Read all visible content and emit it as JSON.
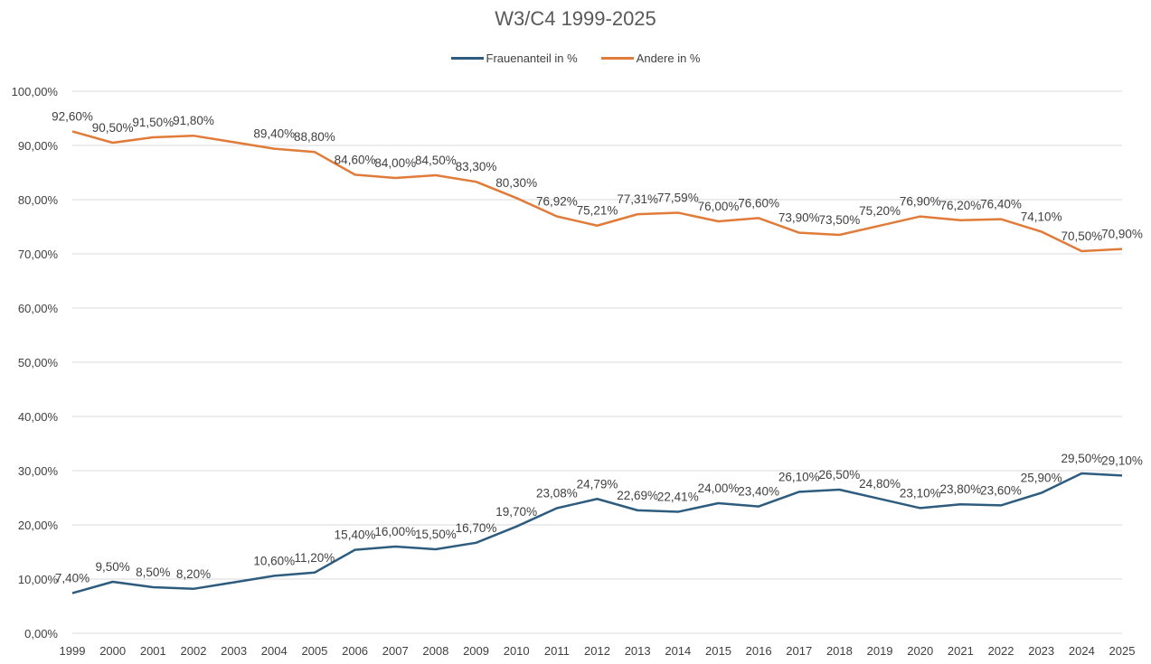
{
  "chart_data": {
    "type": "line",
    "title": "W3/C4 1999-2025",
    "xlabel": "",
    "ylabel": "",
    "ylim": [
      0,
      100
    ],
    "yticks": [
      "0,00%",
      "10,00%",
      "20,00%",
      "30,00%",
      "40,00%",
      "50,00%",
      "60,00%",
      "70,00%",
      "80,00%",
      "90,00%",
      "100,00%"
    ],
    "ytick_values": [
      0,
      10,
      20,
      30,
      40,
      50,
      60,
      70,
      80,
      90,
      100
    ],
    "grid": true,
    "legend_position": "top-center",
    "categories": [
      "1999",
      "2000",
      "2001",
      "2002",
      "2003",
      "2004",
      "2005",
      "2006",
      "2007",
      "2008",
      "2009",
      "2010",
      "2011",
      "2012",
      "2013",
      "2014",
      "2015",
      "2016",
      "2017",
      "2018",
      "2019",
      "2020",
      "2021",
      "2022",
      "2023",
      "2024",
      "2025"
    ],
    "series": [
      {
        "name": "Frauenanteil in %",
        "color": "#2E5C7E",
        "values": [
          7.4,
          9.5,
          8.5,
          8.2,
          9.4,
          10.6,
          11.2,
          15.4,
          16.0,
          15.5,
          16.7,
          19.7,
          23.08,
          24.79,
          22.69,
          22.41,
          24.0,
          23.4,
          26.1,
          26.5,
          24.8,
          23.1,
          23.8,
          23.6,
          25.9,
          29.5,
          29.1
        ],
        "labels": [
          "7,40%",
          "9,50%",
          "8,50%",
          "8,20%",
          "",
          "10,60%",
          "11,20%",
          "15,40%",
          "16,00%",
          "15,50%",
          "16,70%",
          "19,70%",
          "23,08%",
          "24,79%",
          "22,69%",
          "22,41%",
          "24,00%",
          "23,40%",
          "26,10%",
          "26,50%",
          "24,80%",
          "23,10%",
          "23,80%",
          "23,60%",
          "25,90%",
          "29,50%",
          "29,10%"
        ]
      },
      {
        "name": "Andere in %",
        "color": "#E07B39",
        "values": [
          92.6,
          90.5,
          91.5,
          91.8,
          90.6,
          89.4,
          88.8,
          84.6,
          84.0,
          84.5,
          83.3,
          80.3,
          76.92,
          75.21,
          77.31,
          77.59,
          76.0,
          76.6,
          73.9,
          73.5,
          75.2,
          76.9,
          76.2,
          76.4,
          74.1,
          70.5,
          70.9
        ],
        "labels": [
          "92,60%",
          "90,50%",
          "91,50%",
          "91,80%",
          "",
          "89,40%",
          "88,80%",
          "84,60%",
          "84,00%",
          "84,50%",
          "83,30%",
          "80,30%",
          "76,92%",
          "75,21%",
          "77,31%",
          "77,59%",
          "76,00%",
          "76,60%",
          "73,90%",
          "73,50%",
          "75,20%",
          "76,90%",
          "76,20%",
          "76,40%",
          "74,10%",
          "70,50%",
          "70,90%"
        ]
      }
    ]
  }
}
